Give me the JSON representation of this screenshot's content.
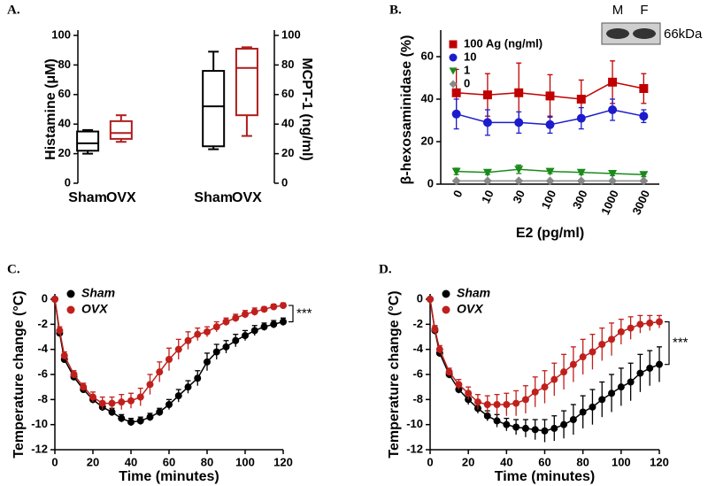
{
  "chart_data": [
    {
      "type": "box",
      "label": "A.",
      "ylabel": "Histamine  (μM)",
      "y2label": "MCPT-1 (ng/ml)",
      "categories": [
        "Sham",
        "OVX",
        "Sham",
        "OVX"
      ],
      "ylim": [
        0,
        100
      ],
      "yticks": [
        0,
        20,
        40,
        60,
        80,
        100
      ],
      "y2lim": [
        0,
        100
      ],
      "y2ticks": [
        0,
        20,
        40,
        60,
        80,
        100
      ],
      "boxes": [
        {
          "color": "#000000",
          "axis": "y",
          "min": 20,
          "q1": 22,
          "median": 27,
          "q3": 35,
          "max": 36
        },
        {
          "color": "#b01c1c",
          "axis": "y",
          "min": 28,
          "q1": 30,
          "median": 34,
          "q3": 42,
          "max": 46
        },
        {
          "color": "#000000",
          "axis": "y2",
          "min": 23,
          "q1": 25,
          "median": 52,
          "q3": 76,
          "max": 89
        },
        {
          "color": "#b01c1c",
          "axis": "y2",
          "min": 32,
          "q1": 46,
          "median": 78,
          "q3": 91,
          "max": 92
        }
      ]
    },
    {
      "type": "line",
      "label": "B.",
      "ylabel": "β-hexosaminidase (%)",
      "xlabel": "E2 (pg/ml)",
      "categories": [
        "0",
        "10",
        "30",
        "100",
        "300",
        "1000",
        "3000"
      ],
      "ylim": [
        0,
        70
      ],
      "yticks": [
        0,
        20,
        40,
        60
      ],
      "inset_labels": [
        "M",
        "F"
      ],
      "inset_marker": "66kDa",
      "series": [
        {
          "name": "100 Ag (ng/ml)",
          "color": "#c00000",
          "marker": "square",
          "values": [
            43,
            42,
            43,
            41.5,
            40,
            48,
            45
          ],
          "errors": [
            11,
            10,
            14,
            10,
            9,
            10,
            7
          ]
        },
        {
          "name": "10",
          "color": "#1c1ccc",
          "marker": "circle",
          "values": [
            33,
            29,
            29,
            28,
            31,
            35,
            32
          ],
          "errors": [
            7,
            6,
            5,
            4,
            5,
            5,
            3
          ]
        },
        {
          "name": "1",
          "color": "#1a8a1a",
          "marker": "triangle",
          "values": [
            6,
            5.5,
            7,
            6,
            5.5,
            5,
            4.5
          ],
          "errors": [
            1.5,
            1,
            2,
            1,
            1,
            1,
            1
          ]
        },
        {
          "name": "0",
          "color": "#888888",
          "marker": "diamond",
          "values": [
            1.5,
            1.5,
            1.5,
            1.5,
            1.5,
            1.5,
            1.5
          ],
          "errors": [
            0.5,
            0.5,
            0.5,
            0.5,
            0.5,
            0.5,
            0.5
          ]
        }
      ]
    },
    {
      "type": "line",
      "label": "C.",
      "ylabel": "Temperature change (°C)",
      "xlabel": "Time (minutes)",
      "annotation": "***",
      "x": [
        0,
        2.5,
        5,
        10,
        15,
        20,
        25,
        30,
        35,
        40,
        45,
        50,
        55,
        60,
        65,
        70,
        75,
        80,
        85,
        90,
        95,
        100,
        105,
        110,
        115,
        120
      ],
      "xlim": [
        0,
        120
      ],
      "xticks": [
        0,
        20,
        40,
        60,
        80,
        100,
        120
      ],
      "ylim": [
        -12,
        0
      ],
      "yticks": [
        -12,
        -10,
        -8,
        -6,
        -4,
        -2,
        0
      ],
      "series": [
        {
          "name": "Sham",
          "color": "#000000",
          "marker": "circle",
          "values": [
            0,
            -2.7,
            -4.8,
            -6.2,
            -7.2,
            -8.0,
            -8.6,
            -9.0,
            -9.5,
            -9.8,
            -9.7,
            -9.4,
            -9.0,
            -8.4,
            -7.7,
            -7.0,
            -6.3,
            -5.0,
            -4.2,
            -3.8,
            -3.3,
            -2.9,
            -2.5,
            -2.2,
            -2.0,
            -1.8
          ],
          "errors": [
            0,
            0.2,
            0.2,
            0.2,
            0.2,
            0.3,
            0.3,
            0.3,
            0.3,
            0.3,
            0.3,
            0.3,
            0.3,
            0.4,
            0.5,
            0.5,
            0.6,
            0.7,
            0.6,
            0.5,
            0.5,
            0.4,
            0.4,
            0.3,
            0.3,
            0.3
          ]
        },
        {
          "name": "OVX",
          "color": "#c0201c",
          "marker": "circle",
          "values": [
            0,
            -2.5,
            -4.5,
            -6.0,
            -7.0,
            -7.8,
            -8.3,
            -8.3,
            -8.2,
            -8.1,
            -7.8,
            -6.8,
            -5.8,
            -4.8,
            -4.0,
            -3.3,
            -2.8,
            -2.6,
            -2.2,
            -1.8,
            -1.5,
            -1.2,
            -1.0,
            -0.8,
            -0.6,
            -0.5
          ],
          "errors": [
            0,
            0.3,
            0.3,
            0.3,
            0.3,
            0.4,
            0.5,
            0.5,
            0.6,
            0.6,
            0.7,
            0.8,
            0.8,
            0.9,
            0.8,
            0.7,
            0.5,
            0.4,
            0.4,
            0.3,
            0.3,
            0.3,
            0.3,
            0.2,
            0.2,
            0.2
          ]
        }
      ]
    },
    {
      "type": "line",
      "label": "D.",
      "ylabel": "Temperature change (°C)",
      "xlabel": "Time (minutes)",
      "annotation": "***",
      "x": [
        0,
        2.5,
        5,
        10,
        15,
        20,
        25,
        30,
        35,
        40,
        45,
        50,
        55,
        60,
        65,
        70,
        75,
        80,
        85,
        90,
        95,
        100,
        105,
        110,
        115,
        120
      ],
      "xlim": [
        0,
        120
      ],
      "xticks": [
        0,
        20,
        40,
        60,
        80,
        100,
        120
      ],
      "ylim": [
        -12,
        0
      ],
      "yticks": [
        -12,
        -10,
        -8,
        -6,
        -4,
        -2,
        0
      ],
      "series": [
        {
          "name": "Sham",
          "color": "#000000",
          "marker": "circle",
          "values": [
            0,
            -2.5,
            -4.3,
            -6.0,
            -7.2,
            -8.0,
            -8.7,
            -9.3,
            -9.7,
            -10.0,
            -10.2,
            -10.3,
            -10.4,
            -10.5,
            -10.3,
            -10.0,
            -9.6,
            -9.0,
            -8.6,
            -8.0,
            -7.5,
            -7.0,
            -6.6,
            -5.9,
            -5.5,
            -5.2
          ],
          "errors": [
            0,
            0.3,
            0.3,
            0.3,
            0.3,
            0.4,
            0.4,
            0.4,
            0.5,
            0.5,
            0.6,
            0.7,
            0.8,
            0.9,
            1.0,
            1.1,
            1.2,
            1.3,
            1.4,
            1.4,
            1.5,
            1.5,
            1.5,
            1.5,
            1.4,
            1.4
          ]
        },
        {
          "name": "OVX",
          "color": "#c0201c",
          "marker": "circle",
          "values": [
            0,
            -2.4,
            -4.0,
            -5.8,
            -6.8,
            -7.5,
            -8.2,
            -8.4,
            -8.4,
            -8.4,
            -8.3,
            -8.0,
            -7.4,
            -7.0,
            -6.4,
            -5.8,
            -5.2,
            -4.6,
            -4.2,
            -3.6,
            -3.2,
            -2.6,
            -2.3,
            -2.0,
            -1.9,
            -1.8
          ],
          "errors": [
            0,
            0.3,
            0.3,
            0.3,
            0.4,
            0.5,
            0.6,
            0.7,
            0.8,
            0.9,
            1.0,
            1.1,
            1.2,
            1.3,
            1.3,
            1.4,
            1.4,
            1.4,
            1.4,
            1.3,
            1.3,
            1.0,
            0.9,
            0.7,
            0.6,
            0.5
          ]
        }
      ]
    }
  ]
}
